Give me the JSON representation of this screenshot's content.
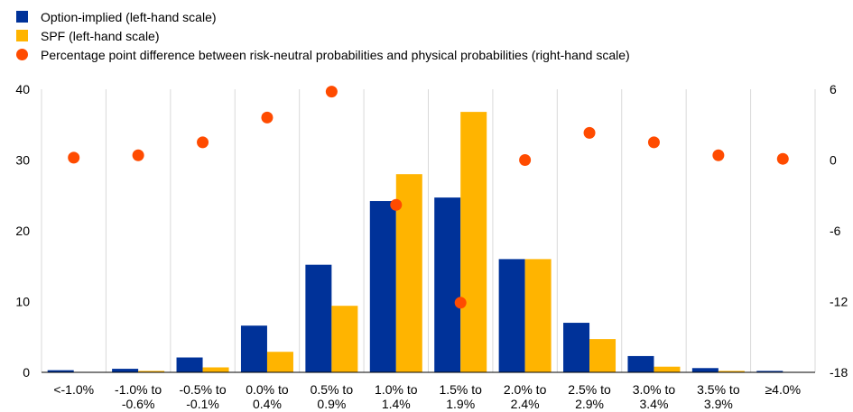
{
  "chart_data": {
    "type": "bar",
    "categories": [
      [
        "<-1.0%"
      ],
      [
        "-1.0% to",
        "-0.6%"
      ],
      [
        "-0.5% to",
        "-0.1%"
      ],
      [
        "0.0% to",
        "0.4%"
      ],
      [
        "0.5% to",
        "0.9%"
      ],
      [
        "1.0% to",
        "1.4%"
      ],
      [
        "1.5% to",
        "1.9%"
      ],
      [
        "2.0% to",
        "2.4%"
      ],
      [
        "2.5% to",
        "2.9%"
      ],
      [
        "3.0% to",
        "3.4%"
      ],
      [
        "3.5% to",
        "3.9%"
      ],
      [
        "≥4.0%"
      ]
    ],
    "series": [
      {
        "name": "Option-implied (left-hand scale)",
        "type": "bar",
        "axis": "left",
        "color": "#003299",
        "values": [
          0.3,
          0.5,
          2.1,
          6.6,
          15.2,
          24.2,
          24.7,
          16.0,
          7.0,
          2.3,
          0.6,
          0.2
        ]
      },
      {
        "name": "SPF (left-hand scale)",
        "type": "bar",
        "axis": "left",
        "color": "#FFB400",
        "values": [
          0.0,
          0.2,
          0.7,
          2.9,
          9.4,
          28.0,
          36.8,
          16.0,
          4.7,
          0.8,
          0.2,
          0.0
        ]
      },
      {
        "name": "Percentage point difference between risk-neutral probabilities and physical probabilities (right-hand scale)",
        "type": "scatter",
        "axis": "right",
        "color": "#FF4B00",
        "values": [
          0.2,
          0.4,
          1.5,
          3.6,
          5.8,
          -3.8,
          -12.1,
          0.0,
          2.3,
          1.5,
          0.4,
          0.1
        ]
      }
    ],
    "y_left": {
      "min": 0,
      "max": 40,
      "ticks": [
        "0",
        "10",
        "20",
        "30",
        "40"
      ]
    },
    "y_right": {
      "min": -18,
      "max": 6,
      "ticks": [
        "-18",
        "-12",
        "-6",
        "0",
        "6"
      ]
    },
    "grid": "vertical category separators",
    "legend_position": "top-left"
  }
}
